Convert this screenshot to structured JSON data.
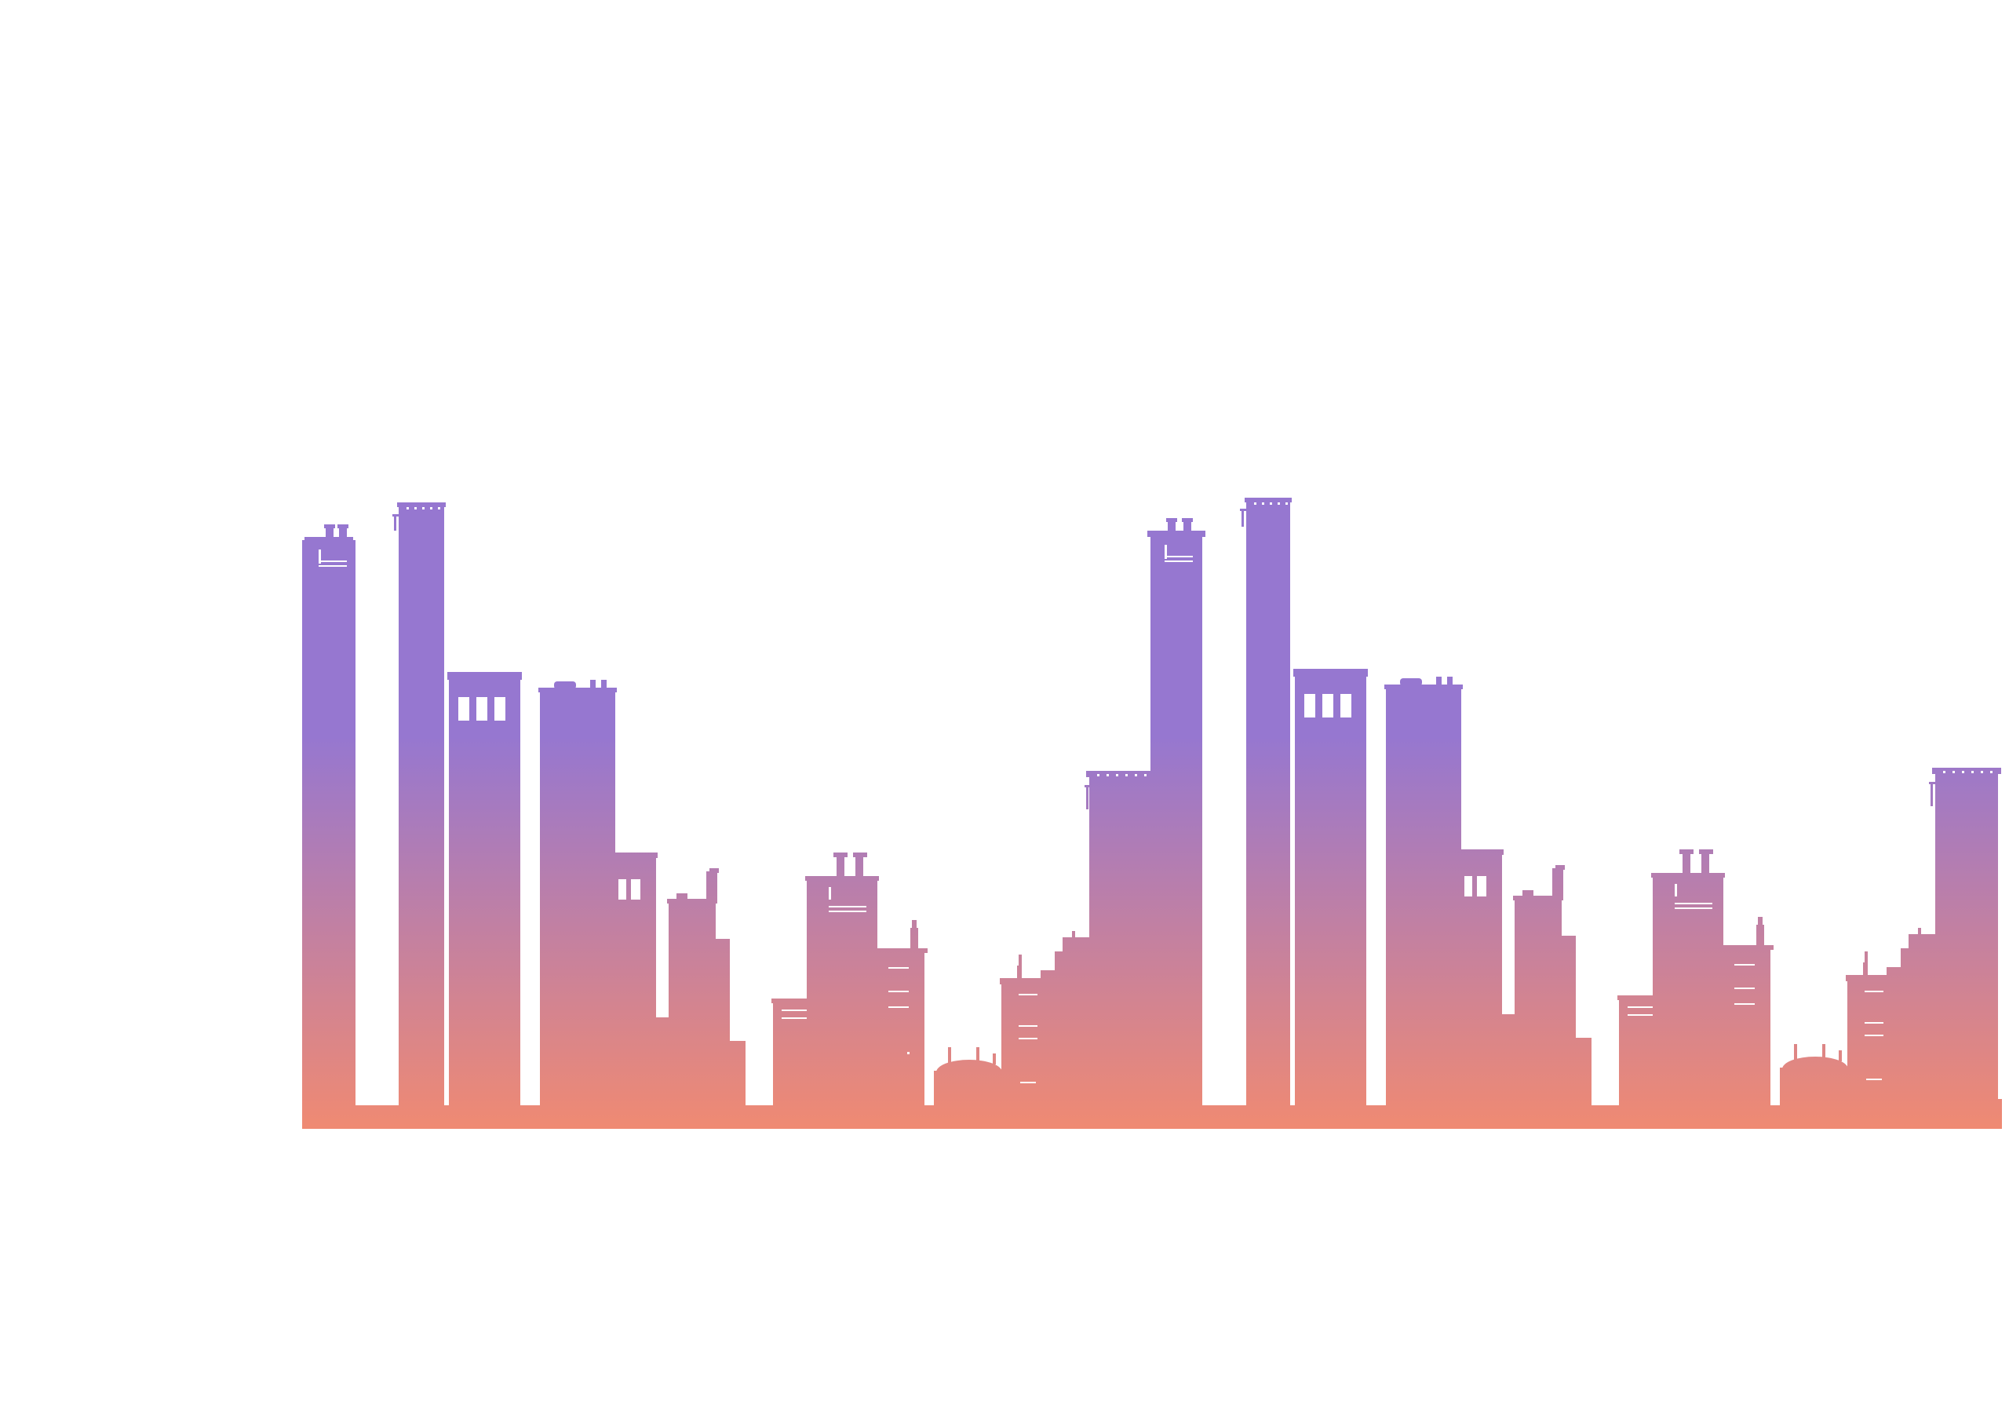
{
  "scene": {
    "background_color": "#ffffff",
    "subject": "city-skyline-silhouette",
    "gradient": {
      "top_color": "#9677d0",
      "bottom_color": "#f08a72"
    },
    "window_color": "#ffffff",
    "repeated_panels": 2,
    "right_edge_building": true
  }
}
